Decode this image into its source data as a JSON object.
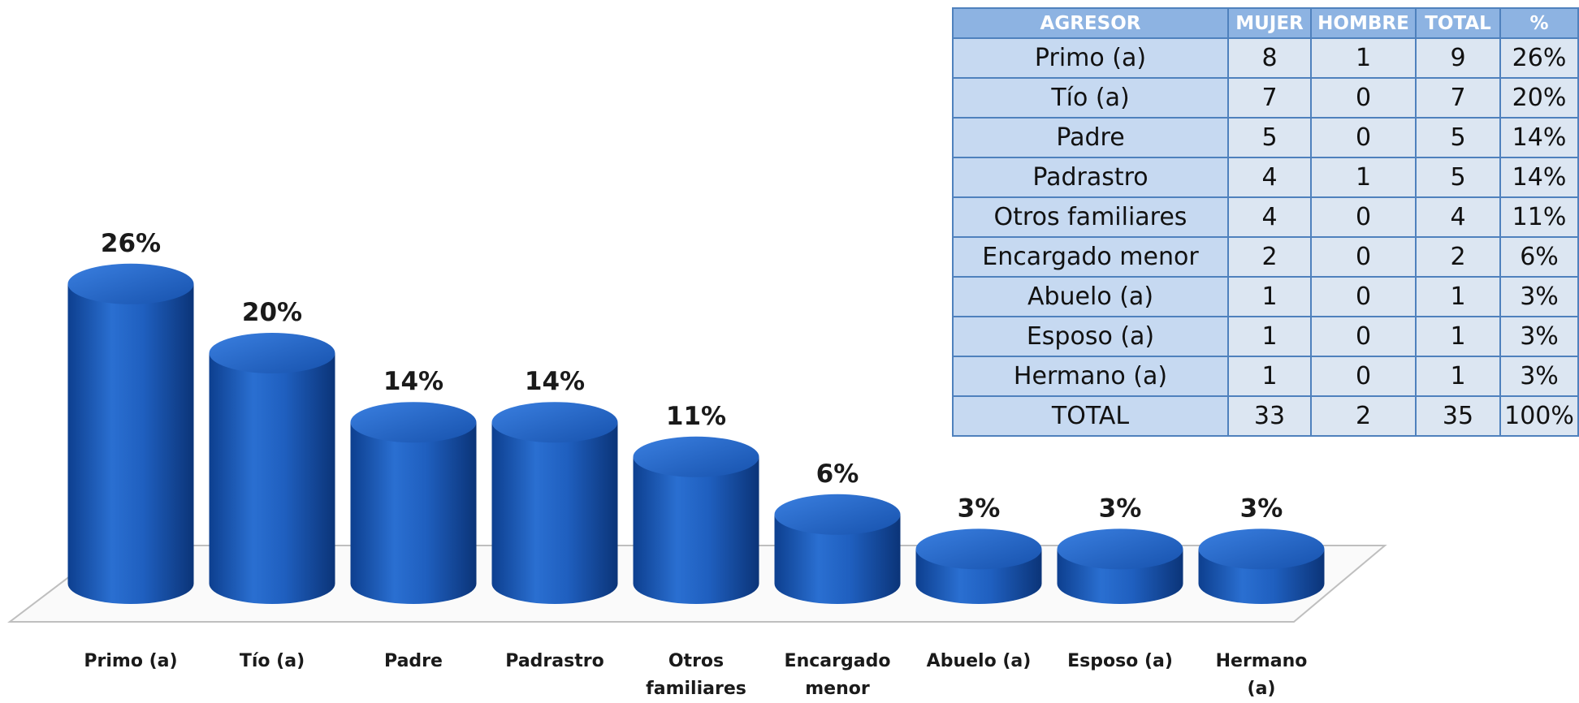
{
  "chart_data": {
    "type": "bar",
    "categories": [
      "Primo (a)",
      "Tío (a)",
      "Padre",
      "Padrastro",
      "Otros familiares",
      "Encargado menor",
      "Abuelo (a)",
      "Esposo (a)",
      "Hermano (a)"
    ],
    "values": [
      26,
      20,
      14,
      14,
      11,
      6,
      3,
      3,
      3
    ],
    "value_labels": [
      "26%",
      "20%",
      "14%",
      "14%",
      "11%",
      "6%",
      "3%",
      "3%",
      "3%"
    ],
    "color": "#1f5fbf"
  },
  "table": {
    "header": [
      "AGRESOR",
      "MUJER",
      "HOMBRE",
      "TOTAL",
      "%"
    ],
    "rows": [
      [
        "Primo (a)",
        "8",
        "1",
        "9",
        "26%"
      ],
      [
        "Tío (a)",
        "7",
        "0",
        "7",
        "20%"
      ],
      [
        "Padre",
        "5",
        "0",
        "5",
        "14%"
      ],
      [
        "Padrastro",
        "4",
        "1",
        "5",
        "14%"
      ],
      [
        "Otros familiares",
        "4",
        "0",
        "4",
        "11%"
      ],
      [
        "Encargado menor",
        "2",
        "0",
        "2",
        "6%"
      ],
      [
        "Abuelo (a)",
        "1",
        "0",
        "1",
        "3%"
      ],
      [
        "Esposo (a)",
        "1",
        "0",
        "1",
        "3%"
      ],
      [
        "Hermano (a)",
        "1",
        "0",
        "1",
        "3%"
      ],
      [
        "TOTAL",
        "33",
        "2",
        "35",
        "100%"
      ]
    ]
  }
}
